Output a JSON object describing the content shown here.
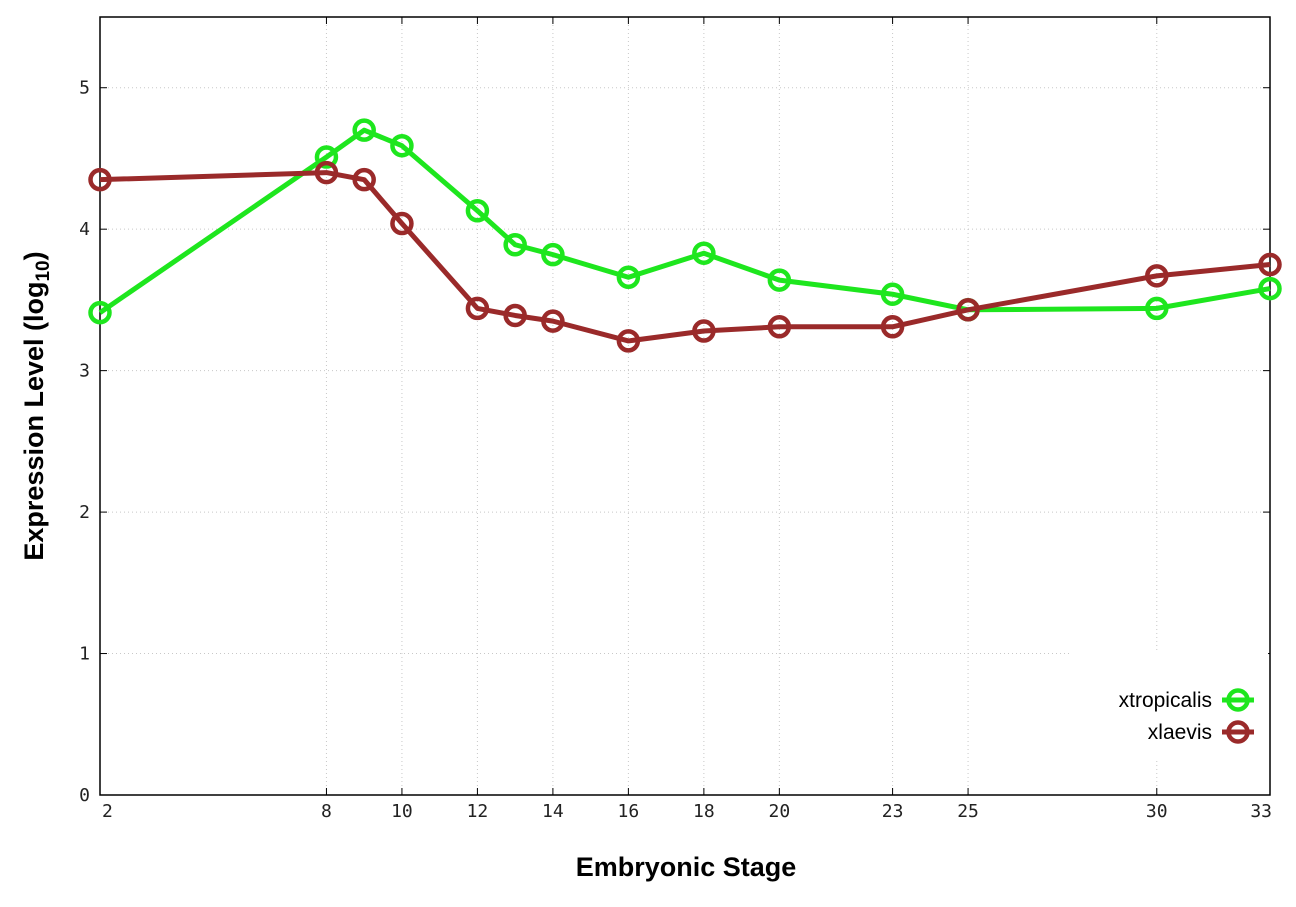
{
  "chart_data": {
    "type": "line",
    "xlabel": "Embryonic Stage",
    "ylabel_main": "Expression Level (log",
    "ylabel_sub": "10",
    "ylabel_close": ")",
    "x_ticks": [
      2,
      8,
      10,
      12,
      14,
      16,
      18,
      20,
      23,
      25,
      30,
      33
    ],
    "y_ticks": [
      0,
      1,
      2,
      3,
      4,
      5
    ],
    "xlim": [
      2,
      33
    ],
    "ylim": [
      0,
      5.5
    ],
    "grid": true,
    "legend_position": "bottom-right",
    "series": [
      {
        "name": "xtropicalis",
        "color": "#1ee61e",
        "x": [
          2,
          8,
          9,
          10,
          12,
          13,
          14,
          16,
          18,
          20,
          23,
          25,
          30,
          33
        ],
        "y": [
          3.41,
          4.51,
          4.7,
          4.59,
          4.13,
          3.89,
          3.82,
          3.66,
          3.83,
          3.64,
          3.54,
          3.43,
          3.44,
          3.58
        ]
      },
      {
        "name": "xlaevis",
        "color": "#9a2a2a",
        "x": [
          2,
          8,
          9,
          10,
          12,
          13,
          14,
          16,
          18,
          20,
          23,
          25,
          30,
          33
        ],
        "y": [
          4.35,
          4.4,
          4.35,
          4.04,
          3.44,
          3.39,
          3.35,
          3.21,
          3.28,
          3.31,
          3.31,
          3.43,
          3.67,
          3.75
        ]
      }
    ]
  }
}
